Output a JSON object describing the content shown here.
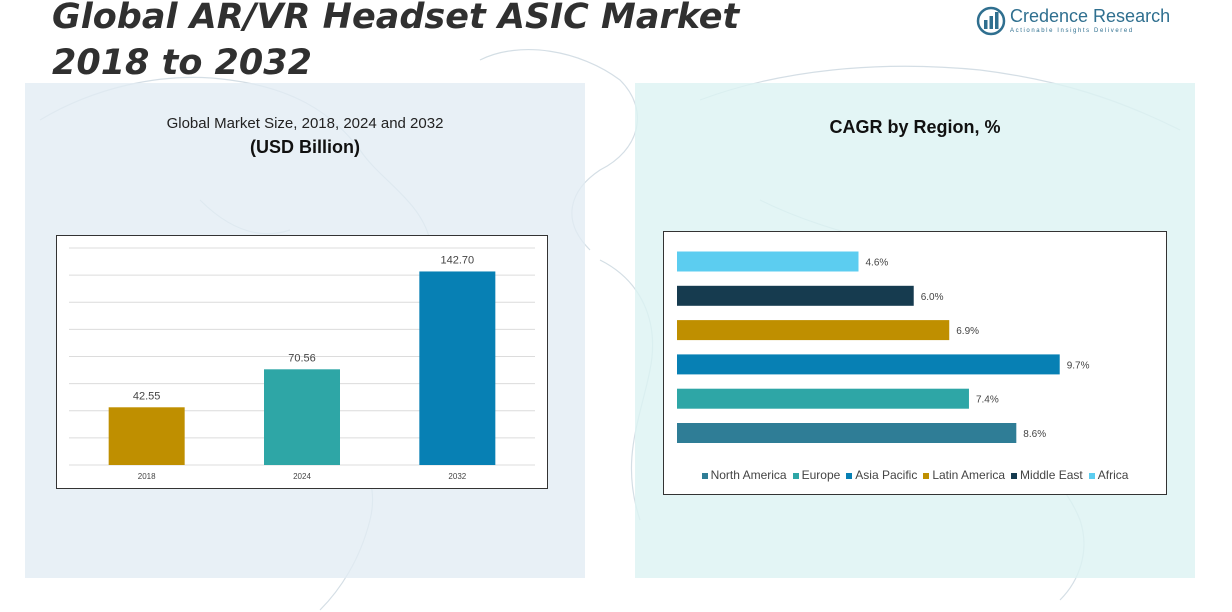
{
  "title": "Global AR/VR Headset ASIC Market 2018 to 2032",
  "logo": {
    "name": "Credence Research",
    "tagline": "Actionable Insights Delivered",
    "icon": "bar-chart-globe-icon"
  },
  "colors": {
    "c2018": "#bf8f00",
    "c2024": "#2ea6a6",
    "c2032": "#0780b4",
    "north_america": "#2f7d96",
    "europe": "#2ea6a6",
    "asia_pacific": "#0780b4",
    "latin_america": "#bf8f00",
    "middle_east": "#163b4f",
    "africa": "#5ccdf0",
    "logo": "#2f6f8f"
  },
  "left_panel": {
    "title": "Global Market Size, 2018, 2024 and 2032",
    "subtitle": "(USD Billion)"
  },
  "right_panel": {
    "title": "CAGR by Region, %"
  },
  "chart_data": [
    {
      "type": "bar",
      "title": "Global Market Size, 2018, 2024 and 2032",
      "subtitle": "(USD Billion)",
      "categories": [
        "2018",
        "2024",
        "2032"
      ],
      "values": [
        42.55,
        70.56,
        142.7
      ],
      "value_labels": [
        "42.55",
        "70.56",
        "142.70"
      ],
      "colors": [
        "#bf8f00",
        "#2ea6a6",
        "#0780b4"
      ],
      "ylim": [
        0,
        160
      ],
      "grid": true,
      "legend": "none"
    },
    {
      "type": "bar",
      "orientation": "horizontal",
      "title": "CAGR by Region, %",
      "series": [
        {
          "name": "North America",
          "value": 8.6,
          "label": "8.6%",
          "color": "#2f7d96"
        },
        {
          "name": "Europe",
          "value": 7.4,
          "label": "7.4%",
          "color": "#2ea6a6"
        },
        {
          "name": "Asia Pacific",
          "value": 9.7,
          "label": "9.7%",
          "color": "#0780b4"
        },
        {
          "name": "Latin America",
          "value": 6.9,
          "label": "6.9%",
          "color": "#bf8f00"
        },
        {
          "name": "Middle East",
          "value": 6.0,
          "label": "6.0%",
          "color": "#163b4f"
        },
        {
          "name": "Africa",
          "value": 4.6,
          "label": "4.6%",
          "color": "#5ccdf0"
        }
      ],
      "xlim": [
        0,
        11
      ],
      "grid": false,
      "legend": "bottom"
    }
  ]
}
